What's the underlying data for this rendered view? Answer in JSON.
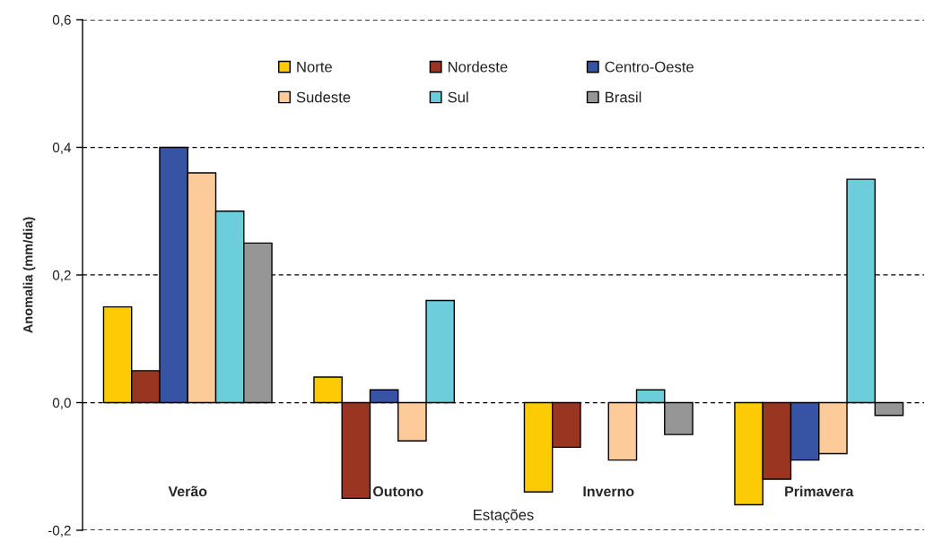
{
  "chart_data": {
    "type": "bar",
    "ylabel": "Anomalia (mm/dia)",
    "xlabel": "Estações",
    "categories": [
      "Verão",
      "Outono",
      "Inverno",
      "Primavera"
    ],
    "series": [
      {
        "name": "Norte",
        "color": "#fccb06",
        "values": [
          0.15,
          0.04,
          -0.14,
          -0.16
        ]
      },
      {
        "name": "Nordeste",
        "color": "#993520",
        "values": [
          0.05,
          -0.15,
          -0.07,
          -0.12
        ]
      },
      {
        "name": "Centro-Oeste",
        "color": "#3653a4",
        "values": [
          0.4,
          0.02,
          null,
          -0.09
        ]
      },
      {
        "name": "Sudeste",
        "color": "#fdcb99",
        "values": [
          0.36,
          -0.06,
          -0.09,
          -0.08
        ]
      },
      {
        "name": "Sul",
        "color": "#6ccddb",
        "values": [
          0.3,
          0.16,
          0.02,
          0.35
        ]
      },
      {
        "name": "Brasil",
        "color": "#969696",
        "values": [
          0.25,
          null,
          -0.05,
          -0.02
        ]
      }
    ],
    "ylim": [
      -0.2,
      0.6
    ],
    "yticks": [
      {
        "value": -0.2,
        "label": "-0,2"
      },
      {
        "value": 0.0,
        "label": "0,0"
      },
      {
        "value": 0.2,
        "label": "0,2"
      },
      {
        "value": 0.4,
        "label": "0,4"
      },
      {
        "value": 0.6,
        "label": "0,6"
      }
    ],
    "grid": "y",
    "legend": "top"
  }
}
